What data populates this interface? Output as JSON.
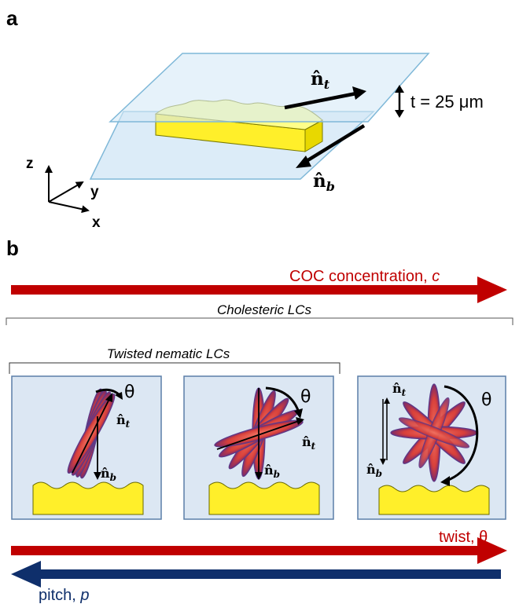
{
  "panel_a": {
    "label": "a",
    "top_director": "n̂",
    "top_director_sub": "t",
    "bottom_director": "n̂",
    "bottom_director_sub": "b",
    "thickness_label": "t = 25 μm",
    "axes": {
      "z": "z",
      "y": "y",
      "x": "x"
    },
    "colors": {
      "substrate": "#d6e9f7",
      "substrate_edge": "#7fb8d8",
      "lc_block": "#ffff66",
      "lc_edge": "#7a7a00"
    }
  },
  "panel_b": {
    "label": "b",
    "concentration_label": "COC concentration, ",
    "concentration_symbol": "c",
    "cholesteric_label": "Cholesteric LCs",
    "twisted_nematic_label": "Twisted nematic LCs",
    "cells": [
      {
        "theta": "θ",
        "top": "n̂",
        "top_sub": "t",
        "bottom": "n̂",
        "bottom_sub": "b"
      },
      {
        "theta": "θ",
        "top": "n̂",
        "top_sub": "t",
        "bottom": "n̂",
        "bottom_sub": "b"
      },
      {
        "theta": "θ",
        "top": "n̂",
        "top_sub": "t",
        "bottom": "n̂",
        "bottom_sub": "b"
      }
    ],
    "twist_label": "twist, θ",
    "pitch_label": "pitch, ",
    "pitch_symbol": "p",
    "colors": {
      "red_arrow": "#c00000",
      "blue_arrow": "#0f2f6b",
      "cell_bg": "#dce7f3",
      "cell_edge": "#5b7fa8",
      "molecule": "#e0504a",
      "molecule_edge": "#5a3a8a"
    }
  }
}
